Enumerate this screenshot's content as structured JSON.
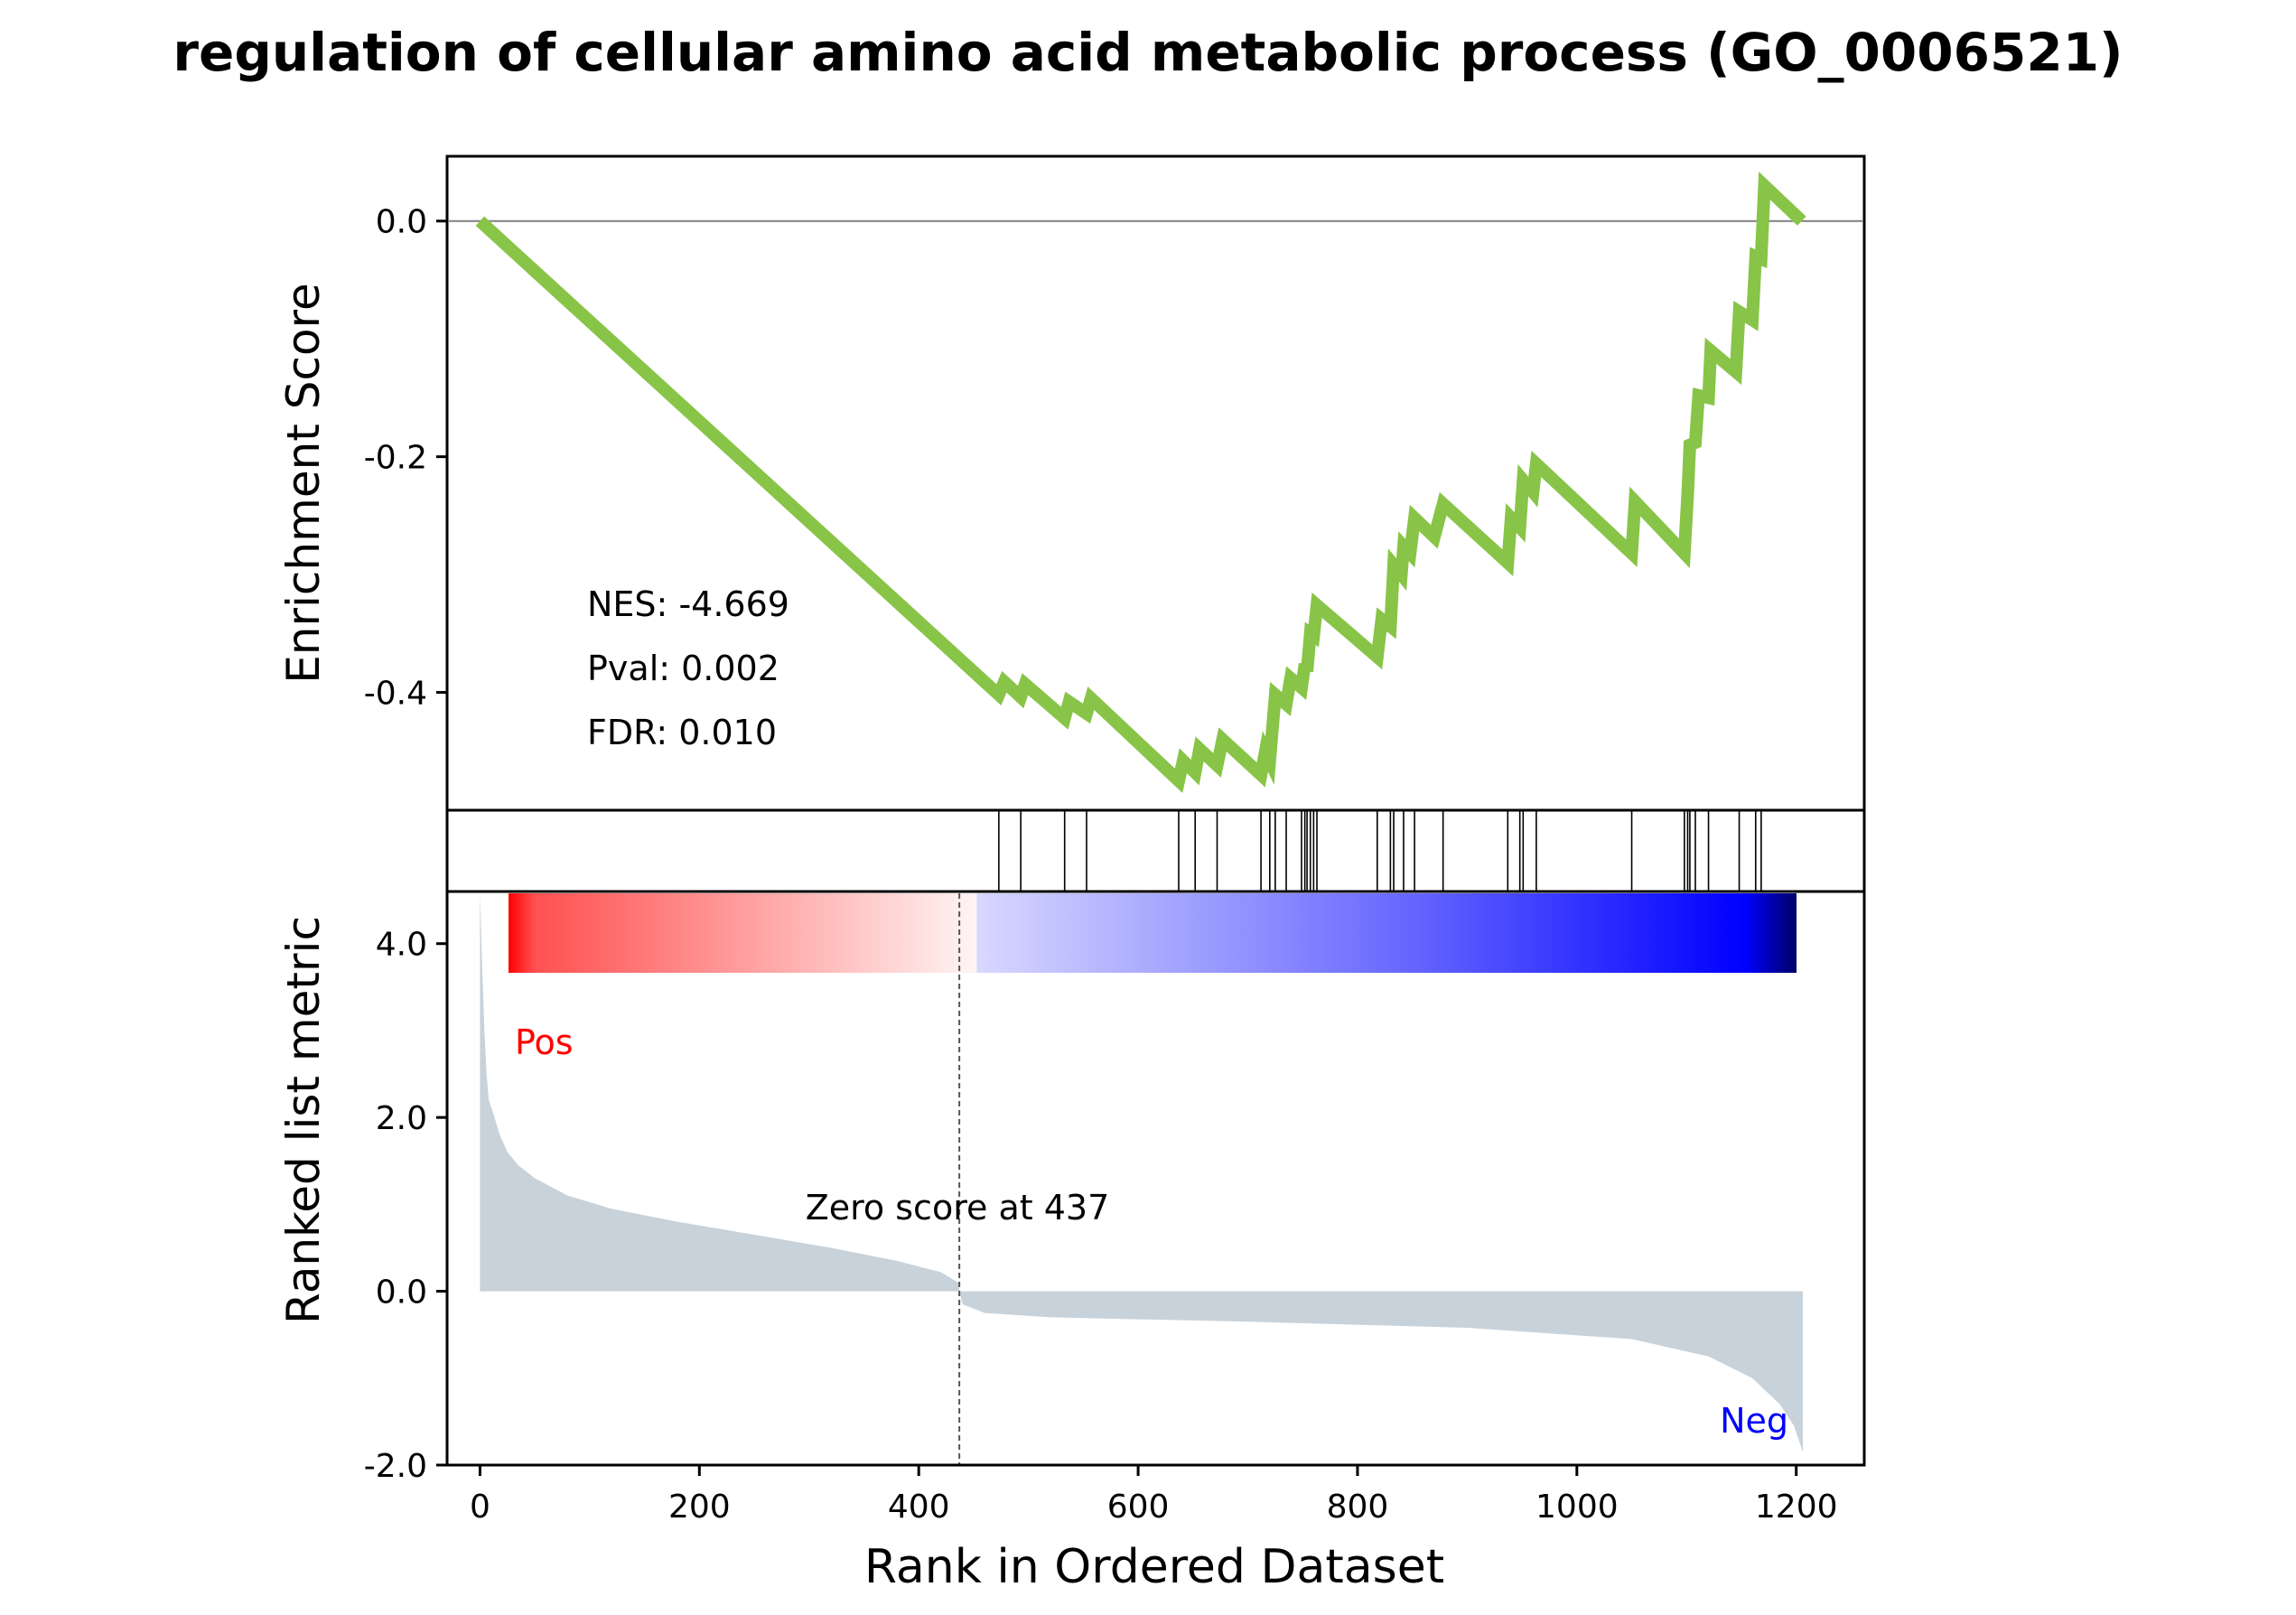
{
  "chart_data": {
    "type": "line",
    "title": "regulation of cellular amino acid metabolic process (GO_0006521)",
    "xlabel": "Rank in Ordered Dataset",
    "xlim": [
      -30,
      1262
    ],
    "xticks": [
      0,
      200,
      400,
      600,
      800,
      1000,
      1200
    ],
    "xtick_labels": [
      "0",
      "200",
      "400",
      "600",
      "800",
      "1000",
      "1200"
    ],
    "enrichment": {
      "ylabel": "Enrichment Score",
      "ylim": [
        -0.5,
        0.055
      ],
      "yticks": [
        0.0,
        -0.2,
        -0.4
      ],
      "ytick_labels": [
        "0.0",
        "-0.2",
        "-0.4"
      ],
      "color": "#88c447",
      "stats": {
        "nes": "NES: -4.669",
        "pval": "Pval: 0.002",
        "fdr": "FDR: 0.010"
      },
      "points": [
        [
          0,
          0.0
        ],
        [
          473,
          -0.402
        ],
        [
          478,
          -0.391
        ],
        [
          493,
          -0.404
        ],
        [
          497,
          -0.393
        ],
        [
          533,
          -0.422
        ],
        [
          537,
          -0.408
        ],
        [
          553,
          -0.418
        ],
        [
          557,
          -0.405
        ],
        [
          637,
          -0.475
        ],
        [
          641,
          -0.458
        ],
        [
          652,
          -0.468
        ],
        [
          656,
          -0.448
        ],
        [
          672,
          -0.462
        ],
        [
          677,
          -0.44
        ],
        [
          712,
          -0.47
        ],
        [
          716,
          -0.45
        ],
        [
          720,
          -0.458
        ],
        [
          725,
          -0.402
        ],
        [
          735,
          -0.41
        ],
        [
          739,
          -0.388
        ],
        [
          749,
          -0.396
        ],
        [
          752,
          -0.376
        ],
        [
          754,
          -0.382
        ],
        [
          757,
          -0.35
        ],
        [
          760,
          -0.352
        ],
        [
          763,
          -0.326
        ],
        [
          818,
          -0.37
        ],
        [
          822,
          -0.338
        ],
        [
          830,
          -0.344
        ],
        [
          833,
          -0.292
        ],
        [
          840,
          -0.3
        ],
        [
          842,
          -0.276
        ],
        [
          848,
          -0.282
        ],
        [
          852,
          -0.252
        ],
        [
          870,
          -0.268
        ],
        [
          878,
          -0.24
        ],
        [
          937,
          -0.29
        ],
        [
          940,
          -0.252
        ],
        [
          948,
          -0.26
        ],
        [
          951,
          -0.22
        ],
        [
          960,
          -0.23
        ],
        [
          963,
          -0.206
        ],
        [
          1050,
          -0.282
        ],
        [
          1053,
          -0.238
        ],
        [
          1098,
          -0.282
        ],
        [
          1101,
          -0.232
        ],
        [
          1103,
          -0.19
        ],
        [
          1108,
          -0.188
        ],
        [
          1111,
          -0.148
        ],
        [
          1120,
          -0.15
        ],
        [
          1122,
          -0.11
        ],
        [
          1145,
          -0.128
        ],
        [
          1148,
          -0.077
        ],
        [
          1160,
          -0.084
        ],
        [
          1163,
          -0.03
        ],
        [
          1168,
          -0.032
        ],
        [
          1171,
          0.03
        ],
        [
          1205,
          0.0
        ]
      ]
    },
    "hits": {
      "ranks": [
        473,
        493,
        533,
        553,
        637,
        652,
        672,
        712,
        720,
        725,
        735,
        749,
        752,
        754,
        757,
        760,
        763,
        818,
        830,
        833,
        842,
        852,
        878,
        937,
        948,
        951,
        963,
        1050,
        1098,
        1101,
        1103,
        1108,
        1120,
        1148,
        1163,
        1168
      ]
    },
    "ranked_metric": {
      "ylabel": "Ranked list metric",
      "ylim": [
        -2.0,
        4.6
      ],
      "yticks": [
        4.0,
        2.0,
        0.0,
        -2.0
      ],
      "ytick_labels": [
        "4.0",
        "2.0",
        "0.0",
        "-2.0"
      ],
      "fill_color": "#c8d2da",
      "pos_label": "Pos",
      "neg_label": "Neg",
      "pos_color": "#ff0000",
      "neg_color": "#0000ff",
      "zero_cross_rank": 437,
      "zero_cross_text": "Zero score at 437",
      "n_genes": 1206,
      "points": [
        [
          0,
          4.6
        ],
        [
          2,
          3.7
        ],
        [
          4,
          3.0
        ],
        [
          6,
          2.5
        ],
        [
          8,
          2.2
        ],
        [
          12,
          2.05
        ],
        [
          18,
          1.8
        ],
        [
          25,
          1.6
        ],
        [
          35,
          1.45
        ],
        [
          50,
          1.3
        ],
        [
          80,
          1.1
        ],
        [
          120,
          0.95
        ],
        [
          180,
          0.8
        ],
        [
          250,
          0.65
        ],
        [
          320,
          0.5
        ],
        [
          380,
          0.35
        ],
        [
          420,
          0.22
        ],
        [
          436,
          0.1
        ],
        [
          437,
          0.0
        ],
        [
          440,
          -0.15
        ],
        [
          460,
          -0.25
        ],
        [
          520,
          -0.3
        ],
        [
          700,
          -0.35
        ],
        [
          900,
          -0.42
        ],
        [
          1050,
          -0.55
        ],
        [
          1120,
          -0.75
        ],
        [
          1160,
          -1.0
        ],
        [
          1185,
          -1.3
        ],
        [
          1198,
          -1.55
        ],
        [
          1206,
          -1.85
        ]
      ]
    },
    "colorbar": {
      "stops": [
        "#ff0000",
        "#ffffff",
        "#0000ff",
        "#000066"
      ]
    }
  }
}
